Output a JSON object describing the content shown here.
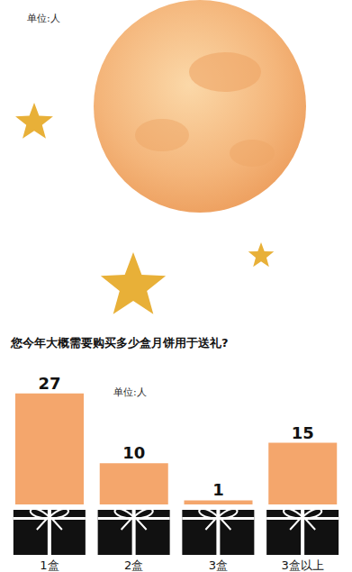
{
  "chart_data": {
    "type": "bar",
    "title": "您今年大概需要购买多少盒月饼用于送礼?",
    "subtitle": "单位:人",
    "annotations": [
      "单位:人"
    ],
    "categories": [
      "1盒",
      "2盒",
      "3盒",
      "3盒以上"
    ],
    "values": [
      27,
      10,
      1,
      15
    ],
    "color": "#f4a66c",
    "ylim": [
      0,
      30
    ],
    "data_labels": true,
    "tick_labels": "x",
    "grid": false
  }
}
